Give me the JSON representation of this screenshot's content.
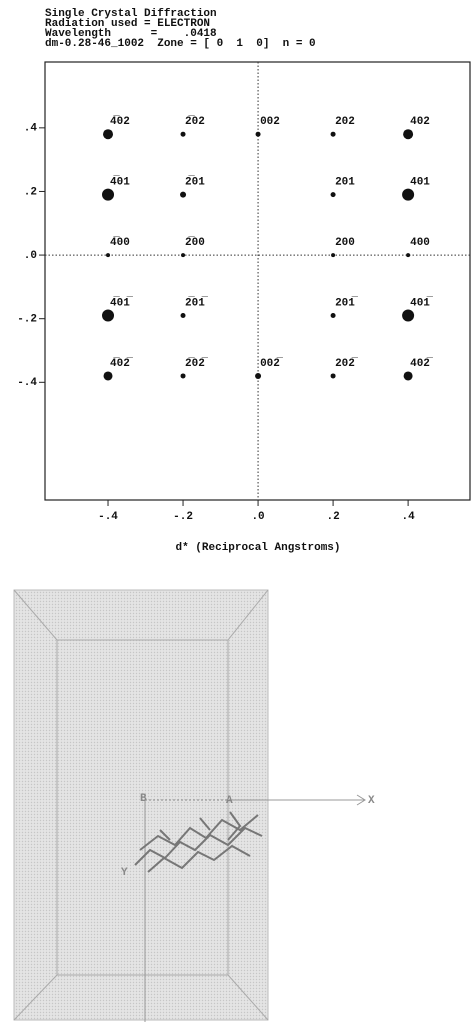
{
  "chart_data": {
    "type": "scatter",
    "title": "Single Crystal Diffraction",
    "annotations": [
      "Radiation used = ELECTRON",
      "Wavelength      =    .0418",
      "dm-0.28-46_1002  Zone = [ 0  1  0]  n = 0"
    ],
    "x_label": "d* (Reciprocal Angstroms)",
    "x": [
      -0.4,
      -0.2,
      0,
      0.2,
      0.4,
      -0.4,
      -0.2,
      0.2,
      0.4,
      -0.4,
      -0.2,
      0.2,
      0.4,
      -0.4,
      -0.2,
      0.2,
      0.4,
      -0.4,
      -0.2,
      0,
      0.2,
      0.4
    ],
    "values": [
      0.38,
      0.38,
      0.38,
      0.38,
      0.38,
      0.19,
      0.19,
      0.19,
      0.19,
      0,
      0,
      0,
      0,
      -0.19,
      -0.19,
      -0.19,
      -0.19,
      -0.38,
      -0.38,
      -0.38,
      -0.38,
      -0.38
    ],
    "sizes": [
      5,
      2.5,
      2.5,
      2.5,
      5,
      6,
      3,
      2.5,
      6,
      2,
      2,
      2,
      2,
      6,
      2.5,
      2.5,
      6,
      4.5,
      2.5,
      3,
      2.5,
      4.5
    ],
    "point_labels": [
      "4̅02",
      "2̅02",
      "002",
      "202",
      "402",
      "4̅01",
      "2̅01",
      "201",
      "401",
      "4̅00",
      "2̅00",
      "200",
      "400",
      "4̅01̅",
      "2̅01̅",
      "201̅",
      "401̅",
      "4̅02̅",
      "2̅02̅",
      "002̅",
      "202̅",
      "402̅"
    ],
    "color": "#111111",
    "xlim": [
      -0.568,
      0.565
    ],
    "ylim": [
      -0.77,
      0.607
    ],
    "xticks": [
      {
        "value": -0.4,
        "label": "-.4"
      },
      {
        "value": -0.2,
        "label": "-.2"
      },
      {
        "value": 0,
        "label": ".0"
      },
      {
        "value": 0.2,
        "label": ".2"
      },
      {
        "value": 0.4,
        "label": ".4"
      }
    ],
    "yticks": [
      {
        "value": 0.4,
        "label": ".4"
      },
      {
        "value": 0.2,
        "label": ".2"
      },
      {
        "value": 0,
        "label": ".0"
      },
      {
        "value": -0.2,
        "label": "-.2"
      },
      {
        "value": -0.4,
        "label": "-.4"
      }
    ]
  },
  "crystal_view": {
    "labels": [
      "B",
      "A",
      "X",
      "Y"
    ]
  }
}
